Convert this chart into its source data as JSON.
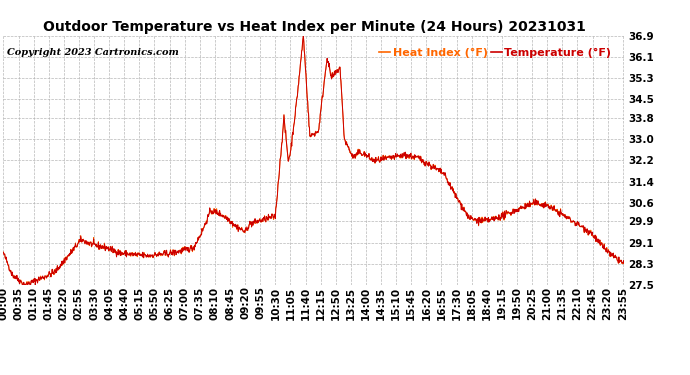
{
  "title": "Outdoor Temperature vs Heat Index per Minute (24 Hours) 20231031",
  "copyright": "Copyright 2023 Cartronics.com",
  "ylabel_right_ticks": [
    27.5,
    28.3,
    29.1,
    29.9,
    30.6,
    31.4,
    32.2,
    33.0,
    33.8,
    34.5,
    35.3,
    36.1,
    36.9
  ],
  "ymin": 27.5,
  "ymax": 36.9,
  "legend_heat_index": "Heat Index (°F)",
  "legend_temperature": "Temperature (°F)",
  "heat_index_color": "#ff6600",
  "temperature_color": "#cc0000",
  "background_color": "#ffffff",
  "grid_color": "#b0b0b0",
  "title_fontsize": 10,
  "copyright_fontsize": 7,
  "legend_fontsize": 8,
  "tick_fontsize": 7.5,
  "x_tick_interval_minutes": 35,
  "total_minutes": 1440,
  "key_times": [
    0,
    20,
    50,
    80,
    120,
    180,
    210,
    240,
    270,
    330,
    390,
    440,
    460,
    480,
    500,
    520,
    540,
    560,
    570,
    590,
    610,
    630,
    650,
    660,
    665,
    680,
    695,
    710,
    730,
    750,
    760,
    780,
    790,
    810,
    825,
    840,
    855,
    870,
    900,
    930,
    960,
    990,
    1020,
    1050,
    1080,
    1110,
    1140,
    1170,
    1200,
    1230,
    1260,
    1290,
    1320,
    1360,
    1380,
    1410,
    1439
  ],
  "key_vals": [
    28.7,
    27.9,
    27.5,
    27.7,
    28.0,
    29.2,
    29.0,
    28.9,
    28.7,
    28.6,
    28.7,
    28.9,
    29.5,
    30.3,
    30.2,
    30.0,
    29.7,
    29.5,
    29.8,
    29.9,
    30.0,
    30.1,
    33.8,
    32.2,
    32.5,
    34.5,
    36.9,
    33.1,
    33.3,
    36.1,
    35.3,
    35.7,
    33.0,
    32.3,
    32.5,
    32.4,
    32.2,
    32.2,
    32.3,
    32.4,
    32.3,
    32.0,
    31.7,
    30.8,
    30.0,
    29.9,
    30.0,
    30.2,
    30.4,
    30.6,
    30.5,
    30.2,
    29.9,
    29.5,
    29.1,
    28.6,
    28.3
  ],
  "noise_seed": 42,
  "noise_std": 0.06
}
